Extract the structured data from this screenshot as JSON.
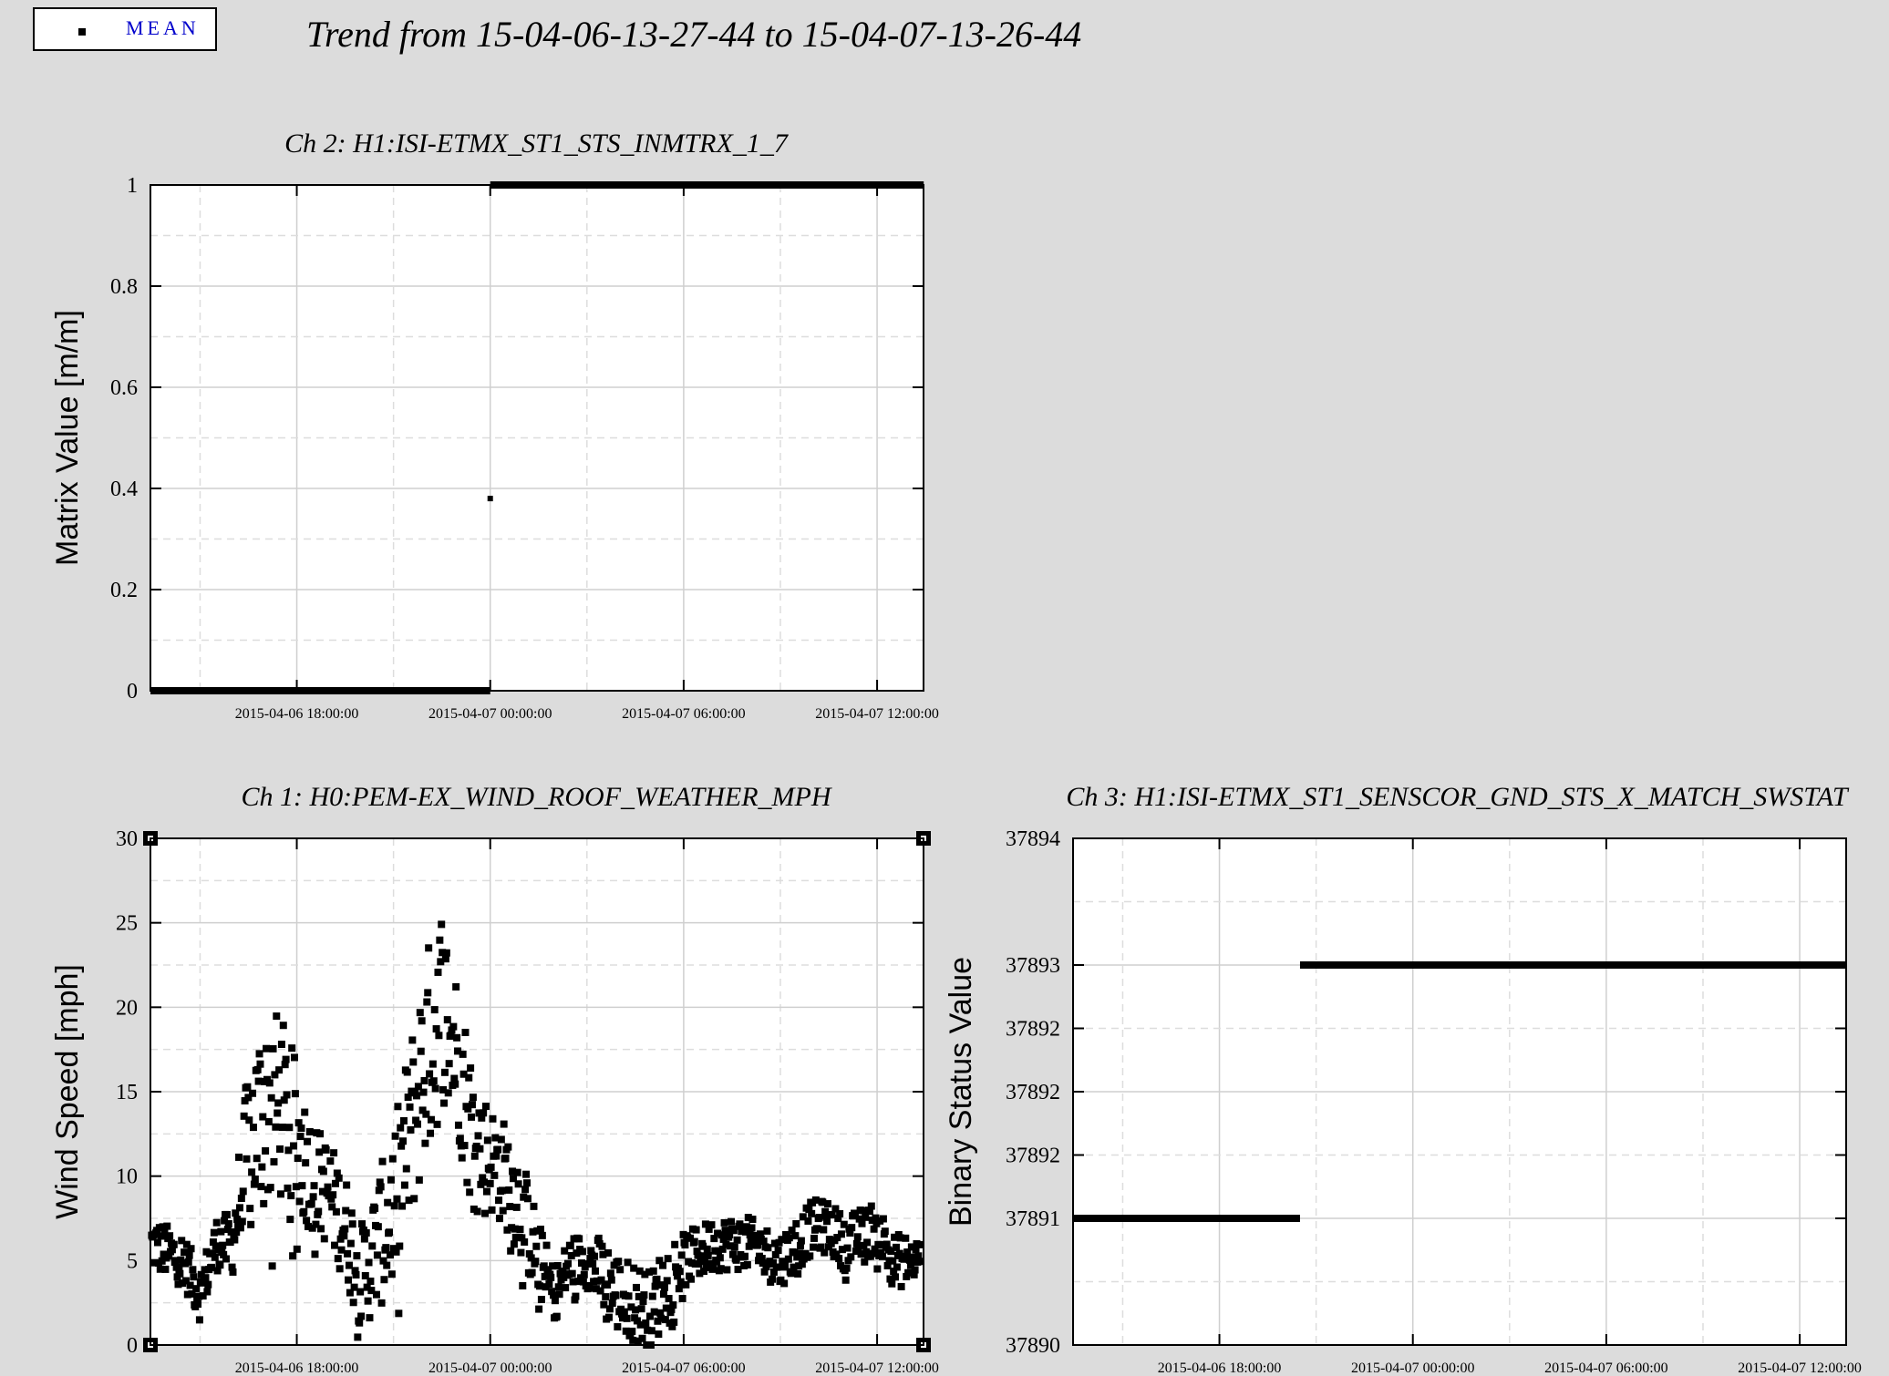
{
  "legend": {
    "label": "MEAN"
  },
  "suptitle": "Trend from 15-04-06-13-27-44 to 15-04-07-13-26-44",
  "chart_data": [
    {
      "type": "line",
      "title": "Ch 2: H1:ISI-ETMX_ST1_STS_INMTRX_1_7",
      "xlabel": "",
      "ylabel": "Matrix Value [m/m]",
      "ylim": [
        0,
        1
      ],
      "yticks": [
        0,
        0.2,
        0.4,
        0.6,
        0.8,
        1
      ],
      "ytick_labels": [
        "0",
        "0.2",
        "0.4",
        "0.6",
        "0.8",
        "1"
      ],
      "xlim_hours": [
        -4.54,
        19.44
      ],
      "xticks_hours": [
        0,
        6,
        12,
        18
      ],
      "xtick_labels": [
        "2015-04-06 18:00:00",
        "2015-04-07 00:00:00",
        "2015-04-07 06:00:00",
        "2015-04-07 12:00:00"
      ],
      "grid": true,
      "series": [
        {
          "marker": "square",
          "segments": [
            {
              "x_from": "2015-04-06 13:27:44",
              "x_to": "2015-04-07 00:00:00",
              "y": 0
            },
            {
              "x_from": "2015-04-07 00:00:00",
              "x_to": "2015-04-07 13:26:44",
              "y": 1
            }
          ],
          "points": [
            {
              "x": "2015-04-07 00:00:00",
              "y": 0.38
            }
          ]
        }
      ]
    },
    {
      "type": "scatter",
      "title": "Ch 1: H0:PEM-EX_WIND_ROOF_WEATHER_MPH",
      "xlabel": "",
      "ylabel": "Wind Speed [mph]",
      "ylim": [
        0,
        30
      ],
      "yticks": [
        0,
        5,
        10,
        15,
        20,
        25,
        30
      ],
      "ytick_labels": [
        "0",
        "5",
        "10",
        "15",
        "20",
        "25",
        "30"
      ],
      "xlim_hours": [
        -4.54,
        19.44
      ],
      "xticks_hours": [
        0,
        6,
        12,
        18
      ],
      "xtick_labels": [
        "2015-04-06 18:00:00",
        "2015-04-07 00:00:00",
        "2015-04-07 06:00:00",
        "2015-04-07 12:00:00"
      ],
      "grid": true,
      "series": [
        {
          "marker": "square",
          "trend_x": [
            "2015-04-06 13:30",
            "2015-04-06 14:30",
            "2015-04-06 15:00",
            "2015-04-06 15:30",
            "2015-04-06 16:00",
            "2015-04-06 16:30",
            "2015-04-06 17:00",
            "2015-04-06 17:30",
            "2015-04-06 18:00",
            "2015-04-06 18:30",
            "2015-04-06 19:00",
            "2015-04-06 19:30",
            "2015-04-06 20:00",
            "2015-04-06 21:00",
            "2015-04-06 22:00",
            "2015-04-06 22:30",
            "2015-04-06 23:00",
            "2015-04-06 23:30",
            "2015-04-07 00:00",
            "2015-04-07 00:30",
            "2015-04-07 01:00",
            "2015-04-07 01:30",
            "2015-04-07 02:00",
            "2015-04-07 02:30",
            "2015-04-07 03:00",
            "2015-04-07 03:30",
            "2015-04-07 04:00",
            "2015-04-07 05:00",
            "2015-04-07 05:30",
            "2015-04-07 06:00",
            "2015-04-07 07:00",
            "2015-04-07 08:00",
            "2015-04-07 09:00",
            "2015-04-07 10:00",
            "2015-04-07 10:30",
            "2015-04-07 11:00",
            "2015-04-07 12:00",
            "2015-04-07 12:30",
            "2015-04-07 13:20"
          ],
          "trend_y": [
            6,
            5,
            3,
            6,
            6,
            12,
            14,
            14,
            12,
            10,
            9,
            7,
            4,
            8,
            17,
            20,
            17,
            12,
            11,
            10,
            8,
            5,
            3,
            5,
            5,
            4,
            3,
            2,
            4,
            5,
            6,
            6,
            5,
            7,
            7,
            6,
            7,
            5,
            5
          ],
          "spread": [
            1,
            1,
            1,
            1,
            1.2,
            3,
            4,
            3.5,
            3,
            2,
            2,
            2,
            2,
            3,
            4,
            4,
            3,
            3,
            2,
            2,
            2,
            1.5,
            1,
            1,
            1,
            1.5,
            1.5,
            1.5,
            1.5,
            1,
            1,
            1,
            1,
            1,
            1,
            1,
            1,
            1,
            1
          ],
          "n_points": 900,
          "y_min": 0,
          "y_max": 26.6
        }
      ]
    },
    {
      "type": "line",
      "title": "Ch 3: H1:ISI-ETMX_ST1_SENSCOR_GND_STS_X_MATCH_SWSTAT",
      "xlabel": "",
      "ylabel": "Binary Status Value",
      "ylim": [
        37890,
        37894
      ],
      "yticks": [
        37890,
        37891,
        37891.98,
        37891.99,
        37892,
        37893,
        37894
      ],
      "ytick_labels": [
        "37890",
        "37891",
        "37892",
        "37892",
        "37892",
        "37893",
        "37894"
      ],
      "xlim_hours": [
        -4.54,
        19.44
      ],
      "xticks_hours": [
        0,
        6,
        12,
        18
      ],
      "xtick_labels": [
        "2015-04-06 18:00:00",
        "2015-04-07 00:00:00",
        "2015-04-07 06:00:00",
        "2015-04-07 12:00:00"
      ],
      "grid": true,
      "series": [
        {
          "segments": [
            {
              "x_from": "2015-04-06 13:27:44",
              "x_to": "2015-04-06 20:30:00",
              "y": 37891
            },
            {
              "x_from": "2015-04-06 20:30:00",
              "x_to": "2015-04-07 13:26:44",
              "y": 37893
            }
          ]
        }
      ]
    }
  ]
}
